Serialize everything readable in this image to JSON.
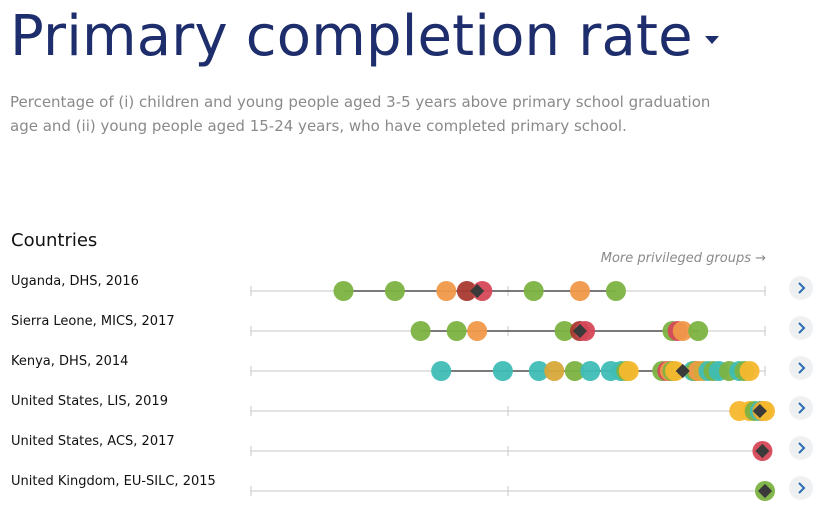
{
  "title": "Primary completion rate",
  "subtitle": "Percentage of (i) children and young people aged 3-5 years above primary school graduation age and (ii) young people aged 15-24 years, who have completed primary school.",
  "countries_label": "Countries",
  "more_privileged": "More privileged groups →",
  "colors": {
    "green": "#7cb342",
    "orange": "#f0994a",
    "red": "#d64858",
    "darkred": "#a93a30",
    "teal": "#3fbdb5",
    "gold": "#d8a83a",
    "yellow": "#f5b82e",
    "marker": "#3a3a3a",
    "title": "#1e2d6b"
  },
  "chart_data": {
    "type": "scatter",
    "title": "Primary completion rate",
    "xlim": [
      0,
      100
    ],
    "rows": [
      {
        "label": "Uganda, DHS, 2016",
        "overall": 44,
        "points": [
          {
            "x": 18,
            "c": "green"
          },
          {
            "x": 28,
            "c": "green"
          },
          {
            "x": 38,
            "c": "orange"
          },
          {
            "x": 42,
            "c": "darkred"
          },
          {
            "x": 45,
            "c": "red"
          },
          {
            "x": 55,
            "c": "green"
          },
          {
            "x": 64,
            "c": "orange"
          },
          {
            "x": 71,
            "c": "green"
          }
        ]
      },
      {
        "label": "Sierra Leone, MICS, 2017",
        "overall": 64,
        "points": [
          {
            "x": 33,
            "c": "green"
          },
          {
            "x": 40,
            "c": "green"
          },
          {
            "x": 44,
            "c": "orange"
          },
          {
            "x": 61,
            "c": "green"
          },
          {
            "x": 64,
            "c": "darkred"
          },
          {
            "x": 65,
            "c": "red"
          },
          {
            "x": 82,
            "c": "green"
          },
          {
            "x": 83,
            "c": "red"
          },
          {
            "x": 84,
            "c": "orange"
          },
          {
            "x": 87,
            "c": "green"
          }
        ]
      },
      {
        "label": "Kenya, DHS, 2014",
        "overall": 84,
        "points": [
          {
            "x": 37,
            "c": "teal"
          },
          {
            "x": 49,
            "c": "teal"
          },
          {
            "x": 56,
            "c": "teal"
          },
          {
            "x": 59,
            "c": "gold"
          },
          {
            "x": 63,
            "c": "green"
          },
          {
            "x": 66,
            "c": "teal"
          },
          {
            "x": 70,
            "c": "teal"
          },
          {
            "x": 72,
            "c": "teal"
          },
          {
            "x": 73,
            "c": "green"
          },
          {
            "x": 73.5,
            "c": "yellow"
          },
          {
            "x": 80,
            "c": "green"
          },
          {
            "x": 81,
            "c": "red"
          },
          {
            "x": 81.5,
            "c": "orange"
          },
          {
            "x": 82,
            "c": "green"
          },
          {
            "x": 82.5,
            "c": "yellow"
          },
          {
            "x": 86,
            "c": "teal"
          },
          {
            "x": 86.5,
            "c": "green"
          },
          {
            "x": 87,
            "c": "orange"
          },
          {
            "x": 88,
            "c": "gold"
          },
          {
            "x": 89,
            "c": "teal"
          },
          {
            "x": 90,
            "c": "green"
          },
          {
            "x": 91,
            "c": "teal"
          },
          {
            "x": 93,
            "c": "green"
          },
          {
            "x": 95,
            "c": "teal"
          },
          {
            "x": 96,
            "c": "green"
          },
          {
            "x": 97,
            "c": "yellow"
          }
        ]
      },
      {
        "label": "United States, LIS, 2019",
        "overall": 99,
        "points": [
          {
            "x": 95,
            "c": "yellow"
          },
          {
            "x": 97,
            "c": "yellow"
          },
          {
            "x": 98,
            "c": "green"
          },
          {
            "x": 99,
            "c": "teal"
          },
          {
            "x": 99.5,
            "c": "gold"
          },
          {
            "x": 100,
            "c": "yellow"
          }
        ]
      },
      {
        "label": "United States, ACS, 2017",
        "overall": 99.5,
        "points": [
          {
            "x": 99.5,
            "c": "red"
          }
        ]
      },
      {
        "label": "United Kingdom, EU-SILC, 2015",
        "overall": 100,
        "points": [
          {
            "x": 100,
            "c": "green"
          }
        ]
      }
    ]
  }
}
